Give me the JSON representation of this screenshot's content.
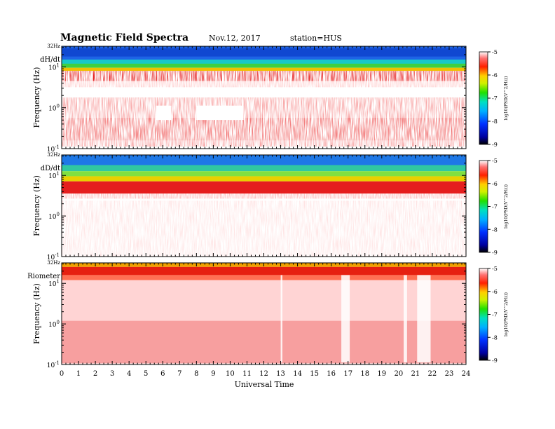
{
  "header": {
    "title": "Magnetic  Field  Spectra",
    "date": "Nov.12, 2017",
    "station": "station=HUS"
  },
  "chart_data": [
    {
      "type": "heatmap",
      "panel_label": "dH/dt",
      "ylabel": "Frequency  (Hz)",
      "top_label": "32Hz",
      "yscale": "log",
      "ylim": [
        0.1,
        32
      ],
      "y_ticks": [
        "10-1",
        "100",
        "101"
      ],
      "xlim": [
        0,
        24
      ],
      "colorbar": {
        "label": "log10(PSD(V^2/Hz))",
        "range": [
          -9,
          -5
        ],
        "ticks": [
          "-5",
          "-6",
          "-7",
          "-8",
          "-9"
        ]
      }
    },
    {
      "type": "heatmap",
      "panel_label": "dD/dt",
      "ylabel": "Frequency  (Hz)",
      "top_label": "32Hz",
      "yscale": "log",
      "ylim": [
        0.1,
        32
      ],
      "y_ticks": [
        "10-1",
        "100",
        "101"
      ],
      "xlim": [
        0,
        24
      ],
      "colorbar": {
        "label": "log10(PSD(V^2/Hz))",
        "range": [
          -9,
          -5
        ],
        "ticks": [
          "-5",
          "-6",
          "-7",
          "-8",
          "-9"
        ]
      }
    },
    {
      "type": "heatmap",
      "panel_label": "Riometer",
      "ylabel": "Frequency  (Hz)",
      "top_label": "32Hz",
      "yscale": "log",
      "ylim": [
        0.1,
        32
      ],
      "y_ticks": [
        "10-1",
        "100",
        "101"
      ],
      "xlim": [
        0,
        24
      ],
      "x_ticks": [
        "0",
        "1",
        "2",
        "3",
        "4",
        "5",
        "6",
        "7",
        "8",
        "9",
        "10",
        "11",
        "12",
        "13",
        "14",
        "15",
        "16",
        "17",
        "18",
        "19",
        "20",
        "21",
        "22",
        "23",
        "24"
      ],
      "xlabel": "Universal Time",
      "colorbar": {
        "label": "log10(PSD(V^2/Hz))",
        "range": [
          -9,
          -5
        ],
        "ticks": [
          "-5",
          "-6",
          "-7",
          "-8",
          "-9"
        ]
      }
    }
  ]
}
